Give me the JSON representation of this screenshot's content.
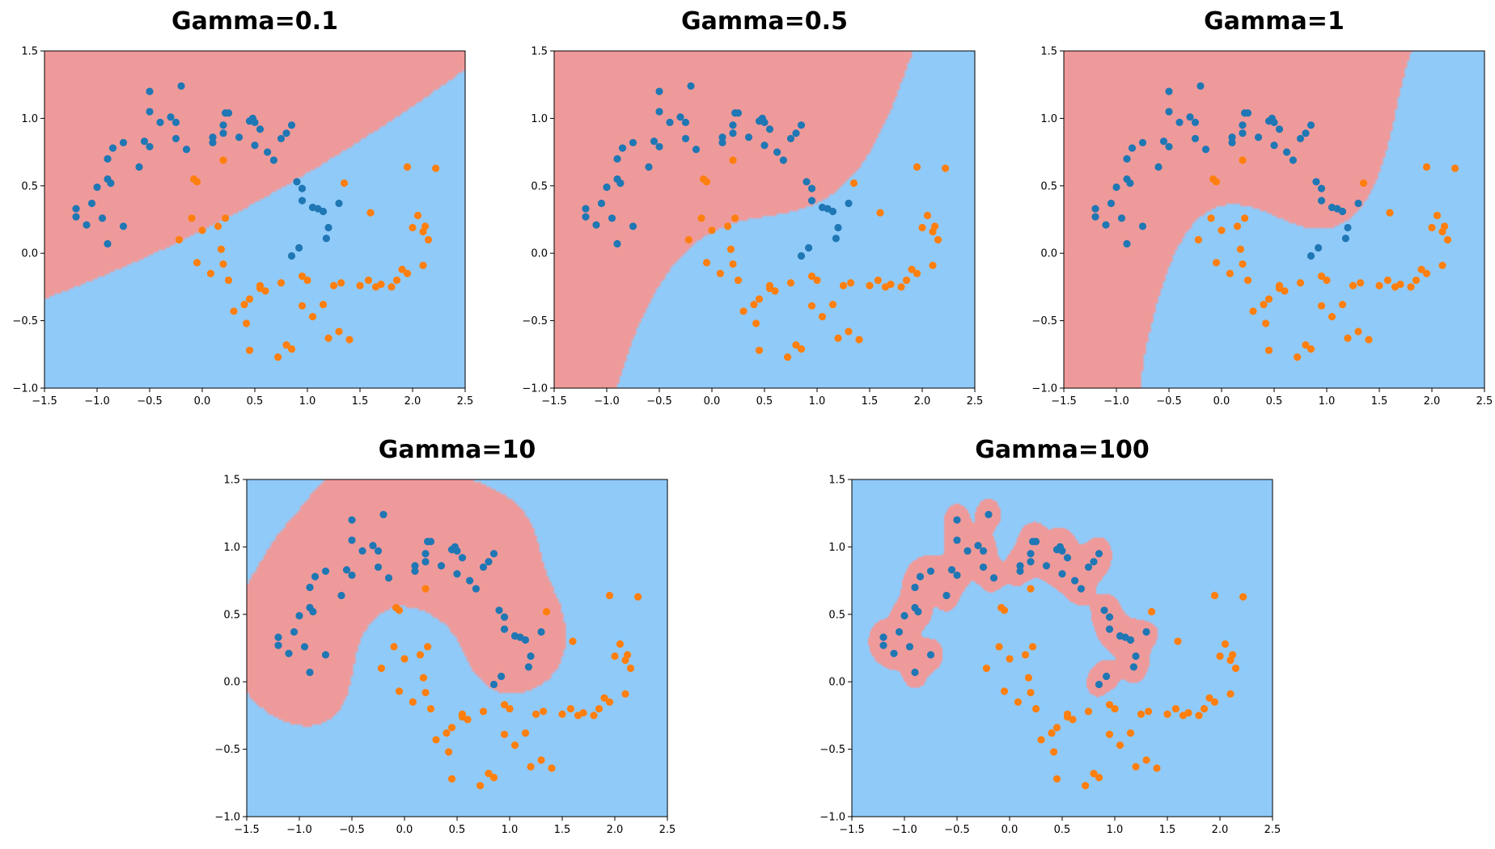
{
  "chart_data": {
    "type": "scatter",
    "xlim": [
      -1.5,
      2.5
    ],
    "ylim": [
      -1.0,
      1.5
    ],
    "xticks": [
      "−1.5",
      "−1.0",
      "−0.5",
      "0.0",
      "0.5",
      "1.0",
      "1.5",
      "2.0",
      "2.5"
    ],
    "yticks": [
      "−1.0",
      "−0.5",
      "0.0",
      "0.5",
      "1.0",
      "1.5"
    ],
    "colors": {
      "region_class0": "#ef9a9a",
      "region_class1": "#90caf9",
      "points_class0": "#1f77b4",
      "points_class1": "#ff7f0e"
    },
    "panels": [
      {
        "title": "Gamma=0.1"
      },
      {
        "title": "Gamma=0.5"
      },
      {
        "title": "Gamma=1"
      },
      {
        "title": "Gamma=10"
      },
      {
        "title": "Gamma=100"
      }
    ],
    "points_class0": [
      [
        -1.2,
        0.33
      ],
      [
        -1.2,
        0.27
      ],
      [
        -1.1,
        0.21
      ],
      [
        -1.05,
        0.37
      ],
      [
        -1.0,
        0.49
      ],
      [
        -0.95,
        0.26
      ],
      [
        -0.9,
        0.55
      ],
      [
        -0.9,
        0.07
      ],
      [
        -0.87,
        0.52
      ],
      [
        -0.9,
        0.7
      ],
      [
        -0.85,
        0.78
      ],
      [
        -0.75,
        0.82
      ],
      [
        -0.75,
        0.2
      ],
      [
        -0.6,
        0.64
      ],
      [
        -0.55,
        0.83
      ],
      [
        -0.5,
        0.79
      ],
      [
        -0.5,
        1.05
      ],
      [
        -0.5,
        1.2
      ],
      [
        -0.4,
        0.97
      ],
      [
        -0.3,
        1.01
      ],
      [
        -0.25,
        0.97
      ],
      [
        -0.25,
        0.85
      ],
      [
        -0.2,
        1.24
      ],
      [
        -0.15,
        0.77
      ],
      [
        0.1,
        0.86
      ],
      [
        0.1,
        0.82
      ],
      [
        0.2,
        0.95
      ],
      [
        0.2,
        0.89
      ],
      [
        0.22,
        1.04
      ],
      [
        0.25,
        1.04
      ],
      [
        0.35,
        0.86
      ],
      [
        0.45,
        0.98
      ],
      [
        0.48,
        1.0
      ],
      [
        0.5,
        0.97
      ],
      [
        0.5,
        0.8
      ],
      [
        0.55,
        0.92
      ],
      [
        0.62,
        0.75
      ],
      [
        0.68,
        0.69
      ],
      [
        0.75,
        0.85
      ],
      [
        0.8,
        0.89
      ],
      [
        0.85,
        0.95
      ],
      [
        0.9,
        0.53
      ],
      [
        0.95,
        0.48
      ],
      [
        0.95,
        0.39
      ],
      [
        1.05,
        0.34
      ],
      [
        1.1,
        0.33
      ],
      [
        1.15,
        0.31
      ],
      [
        1.2,
        0.19
      ],
      [
        1.3,
        0.37
      ],
      [
        0.92,
        0.04
      ],
      [
        0.85,
        -0.02
      ],
      [
        1.18,
        0.11
      ]
    ],
    "points_class1": [
      [
        -0.22,
        0.1
      ],
      [
        -0.1,
        0.26
      ],
      [
        -0.08,
        0.55
      ],
      [
        -0.05,
        0.53
      ],
      [
        -0.05,
        -0.07
      ],
      [
        0.0,
        0.17
      ],
      [
        0.08,
        -0.15
      ],
      [
        0.15,
        0.2
      ],
      [
        0.18,
        0.03
      ],
      [
        0.2,
        -0.08
      ],
      [
        0.25,
        -0.2
      ],
      [
        0.2,
        0.69
      ],
      [
        0.22,
        0.26
      ],
      [
        0.3,
        -0.43
      ],
      [
        0.4,
        -0.38
      ],
      [
        0.45,
        -0.34
      ],
      [
        0.42,
        -0.52
      ],
      [
        0.45,
        -0.72
      ],
      [
        0.55,
        -0.24
      ],
      [
        0.55,
        -0.26
      ],
      [
        0.6,
        -0.28
      ],
      [
        0.72,
        -0.77
      ],
      [
        0.75,
        -0.22
      ],
      [
        0.8,
        -0.68
      ],
      [
        0.85,
        -0.71
      ],
      [
        0.95,
        -0.17
      ],
      [
        0.95,
        -0.39
      ],
      [
        1.0,
        -0.2
      ],
      [
        1.05,
        -0.47
      ],
      [
        1.15,
        -0.38
      ],
      [
        1.2,
        -0.63
      ],
      [
        1.25,
        -0.24
      ],
      [
        1.3,
        -0.58
      ],
      [
        1.32,
        -0.22
      ],
      [
        1.35,
        0.52
      ],
      [
        1.4,
        -0.64
      ],
      [
        1.5,
        -0.24
      ],
      [
        1.58,
        -0.2
      ],
      [
        1.6,
        0.3
      ],
      [
        1.7,
        -0.23
      ],
      [
        1.8,
        -0.25
      ],
      [
        1.85,
        -0.2
      ],
      [
        1.9,
        -0.12
      ],
      [
        1.95,
        -0.15
      ],
      [
        1.95,
        0.64
      ],
      [
        2.0,
        0.19
      ],
      [
        2.05,
        0.28
      ],
      [
        2.1,
        0.16
      ],
      [
        2.15,
        0.1
      ],
      [
        2.1,
        -0.09
      ],
      [
        2.22,
        0.63
      ],
      [
        2.12,
        0.2
      ],
      [
        1.65,
        -0.25
      ]
    ]
  }
}
